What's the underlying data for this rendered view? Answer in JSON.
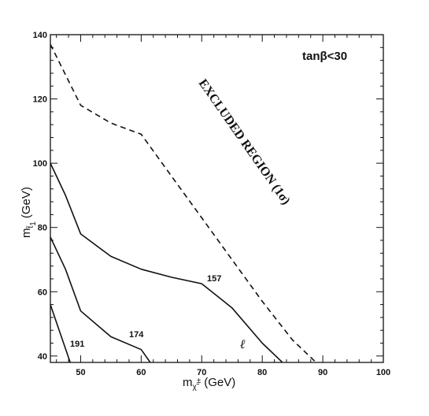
{
  "chart_data": {
    "type": "line",
    "xlabel": {
      "main": "m",
      "sub": "χ̃",
      "sup": "±",
      "unit": "(GeV)"
    },
    "ylabel": {
      "main": "m",
      "sub": "t̃",
      "sub2": "1",
      "unit": "(GeV)"
    },
    "xlim": [
      45,
      100
    ],
    "ylim": [
      38,
      140
    ],
    "xticks": [
      50,
      60,
      70,
      80,
      90,
      100
    ],
    "yticks": [
      40,
      60,
      80,
      100,
      120,
      140
    ],
    "grid": false,
    "annotation": "tanβ<30",
    "region_label": "EXCLUDED REGION (1σ)",
    "marker_label": "ℓ",
    "series": [
      {
        "name": "",
        "style": "dashed",
        "x": [
          45,
          50,
          55,
          60,
          65,
          70,
          75,
          80,
          85,
          90,
          93
        ],
        "y": [
          137,
          118,
          112.5,
          109,
          96,
          83,
          70,
          57,
          45,
          36,
          30
        ]
      },
      {
        "name": "157",
        "style": "solid",
        "label": "157",
        "x": [
          45,
          47.5,
          50,
          55,
          60,
          65,
          70,
          75,
          80,
          85
        ],
        "y": [
          100,
          90,
          78,
          71,
          67,
          64.5,
          62.5,
          55,
          44,
          35
        ]
      },
      {
        "name": "174",
        "style": "solid",
        "label": "174",
        "x": [
          45,
          47.5,
          50,
          55,
          60,
          63
        ],
        "y": [
          77,
          67,
          54,
          46,
          42,
          34
        ]
      },
      {
        "name": "191",
        "style": "solid",
        "label": "191",
        "x": [
          45,
          47,
          49,
          50
        ],
        "y": [
          56,
          45,
          34,
          30
        ]
      }
    ]
  }
}
